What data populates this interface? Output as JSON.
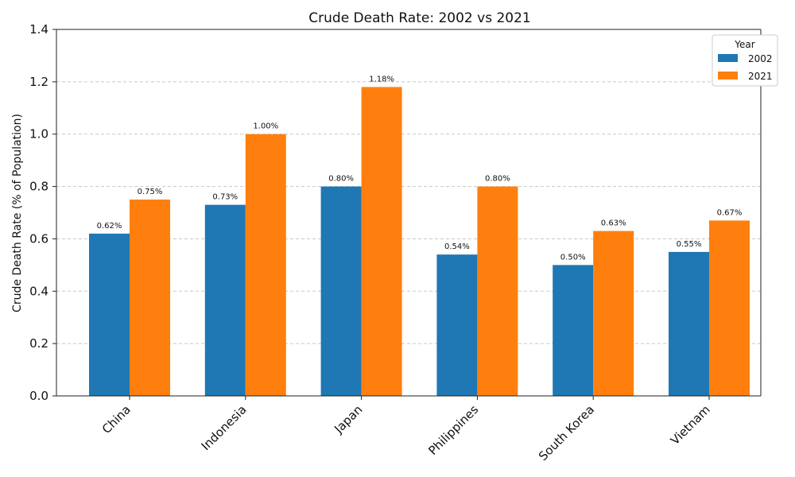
{
  "chart_data": {
    "type": "bar",
    "title": "Crude Death Rate: 2002 vs 2021",
    "xlabel": "",
    "ylabel": "Crude Death Rate (% of Population)",
    "categories": [
      "China",
      "Indonesia",
      "Japan",
      "Philippines",
      "South Korea",
      "Vietnam"
    ],
    "series": [
      {
        "name": "2002",
        "values": [
          0.62,
          0.73,
          0.8,
          0.54,
          0.5,
          0.55
        ],
        "labels": [
          "0.62%",
          "0.73%",
          "0.80%",
          "0.54%",
          "0.50%",
          "0.55%"
        ],
        "color": "#1f77b4"
      },
      {
        "name": "2021",
        "values": [
          0.75,
          1.0,
          1.18,
          0.8,
          0.63,
          0.67
        ],
        "labels": [
          "0.75%",
          "1.00%",
          "1.18%",
          "0.80%",
          "0.63%",
          "0.67%"
        ],
        "color": "#ff7f0e"
      }
    ],
    "ylim": [
      0,
      1.4
    ],
    "yticks": [
      0.0,
      0.2,
      0.4,
      0.6,
      0.8,
      1.0,
      1.2,
      1.4
    ],
    "ytick_labels": [
      "0.0",
      "0.2",
      "0.4",
      "0.6",
      "0.8",
      "1.0",
      "1.2",
      "1.4"
    ],
    "grid": "y-dashed",
    "legend": {
      "title": "Year",
      "position": "top-right"
    },
    "xtick_rotation": "45-degree"
  }
}
